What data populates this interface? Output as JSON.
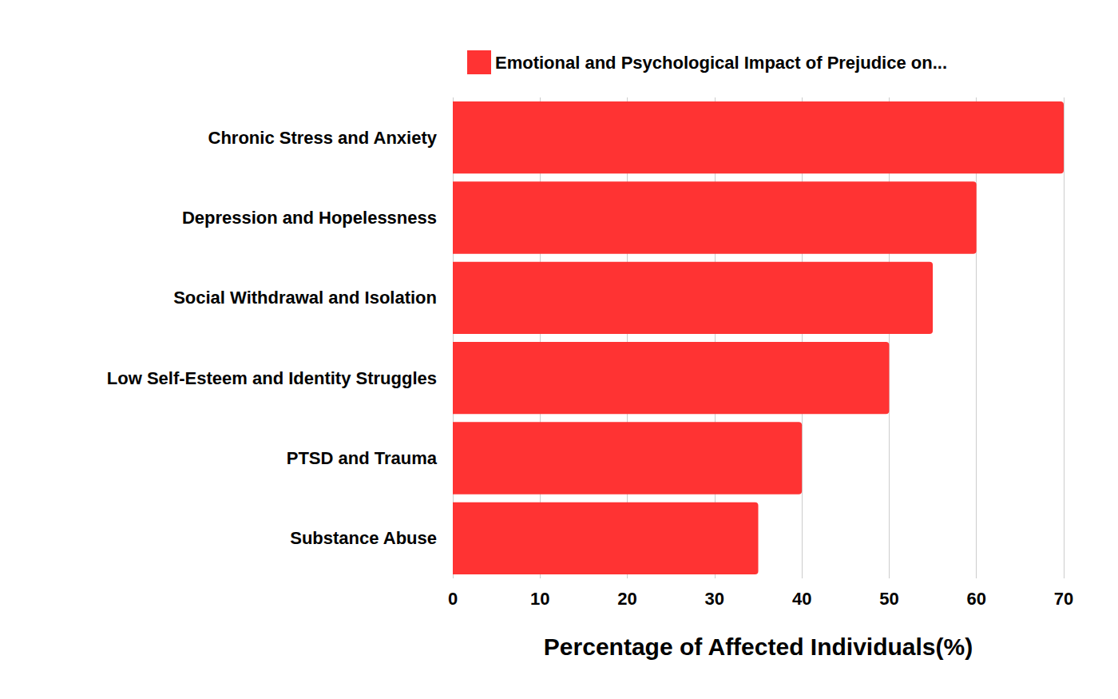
{
  "chart_data": {
    "type": "bar",
    "orientation": "horizontal",
    "categories": [
      "Chronic Stress and Anxiety",
      "Depression and Hopelessness",
      "Social Withdrawal and Isolation",
      "Low Self-Esteem and Identity Struggles",
      "PTSD and Trauma",
      "Substance Abuse"
    ],
    "series": [
      {
        "name": "Emotional and Psychological Impact of Prejudice on...",
        "color": "#ff3333",
        "values": [
          70,
          60,
          55,
          50,
          40,
          35
        ]
      }
    ],
    "x_label": "Percentage of Affected Individuals(%)",
    "xlim": [
      0,
      70
    ],
    "xticks": [
      0,
      10,
      20,
      30,
      40,
      50,
      60,
      70
    ],
    "grid": true,
    "legend": "top"
  }
}
